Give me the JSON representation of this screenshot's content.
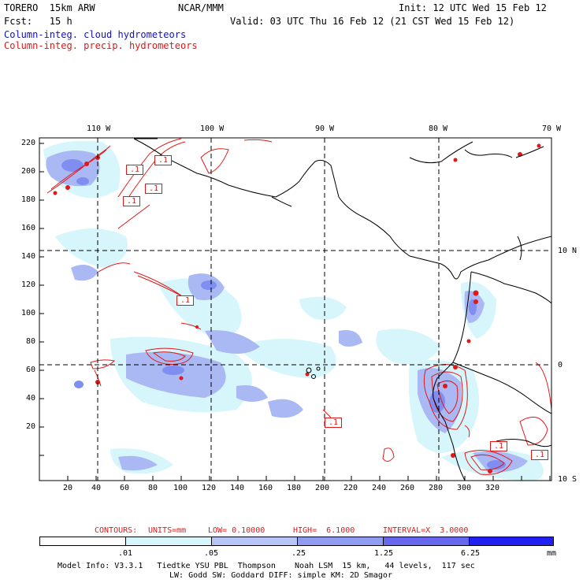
{
  "header": {
    "title": "TORERO  15km ARW",
    "org": "NCAR/MMM",
    "init": "Init: 12 UTC Wed 15 Feb 12",
    "fcst": "Fcst:   15 h",
    "valid": "Valid: 03 UTC Thu 16 Feb 12 (21 CST Wed 15 Feb 12)",
    "field1": "Column-integ. cloud hydrometeors",
    "field2": "Column-integ. precip. hydrometeors"
  },
  "map": {
    "lon_labels": [
      "110 W",
      "100 W",
      "90 W",
      "80 W",
      "70 W"
    ],
    "lat_labels": [
      "10 N",
      "0",
      "10 S"
    ],
    "y_ticks": [
      "220",
      "200",
      "180",
      "160",
      "140",
      "120",
      "100",
      "80",
      "60",
      "40",
      "20"
    ],
    "x_ticks": [
      "20",
      "40",
      "60",
      "80",
      "100",
      "120",
      "140",
      "160",
      "180",
      "200",
      "220",
      "240",
      "260",
      "280",
      "300",
      "320"
    ],
    "contour_labels": [
      ".1",
      ".1",
      ".1",
      ".1",
      ".1",
      ".1",
      ".1",
      ".1"
    ],
    "colors": {
      "cloud_light": "#d6f6fb",
      "cloud_mid": "#aab8f4",
      "cloud_dark": "#7f8ef0",
      "precip_contour": "#e01818",
      "coast": "#000000"
    }
  },
  "contours_info": {
    "label": "CONTOURS:",
    "units": "UNITS=mm",
    "low": "LOW= 0.10000",
    "high": "HIGH=  6.1000",
    "interval": "INTERVAL=X  3.0000"
  },
  "colorbar": {
    "ticks": [
      ".01",
      ".05",
      ".25",
      "1.25",
      "6.25"
    ],
    "unit": "mm",
    "colors": [
      "#ffffff",
      "#d6f6fb",
      "#b6c4f6",
      "#8f9cf1",
      "#6767ee",
      "#2020f0"
    ]
  },
  "footer": {
    "line1": "Model Info: V3.3.1   Tiedtke YSU PBL  Thompson    Noah LSM  15 km,   44 levels,  117 sec",
    "line2": "LW: Godd SW: Goddard DIFF: simple KM: 2D Smagor"
  }
}
